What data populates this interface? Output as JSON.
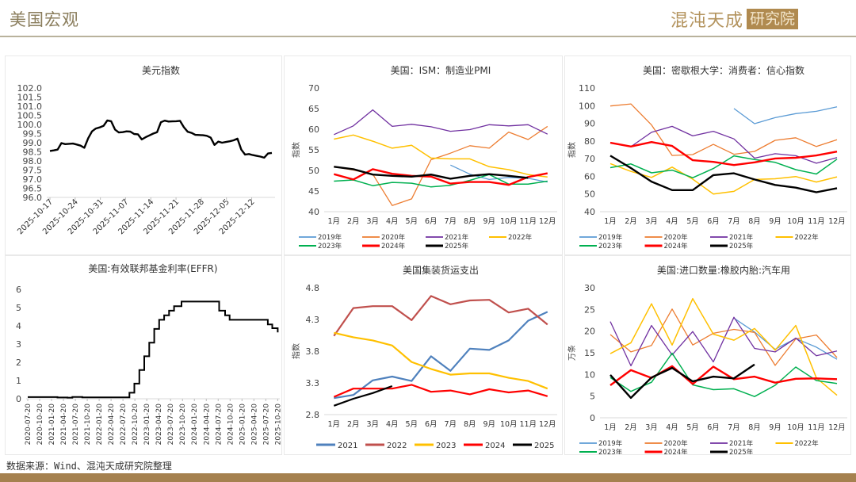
{
  "header": {
    "title": "美国宏观",
    "logo_main": "混沌天成",
    "logo_box": "研究院"
  },
  "footer": {
    "source": "数据来源：Wind、混沌天成研究院整理"
  },
  "colors": {
    "brand": "#a5814f",
    "rule": "#b9b29c"
  },
  "chart_data": [
    {
      "id": "dxy",
      "type": "line",
      "title": "美元指数",
      "xlabel": "",
      "ylabel": "",
      "ylim": [
        96.0,
        102.0
      ],
      "yticks": [
        "96.0",
        "96.5",
        "97.0",
        "97.5",
        "98.0",
        "98.5",
        "99.0",
        "99.5",
        "100.0",
        "100.5",
        "101.0",
        "101.5",
        "102.0"
      ],
      "xticks": [
        "2025-10-17",
        "2025-10-24",
        "2025-10-31",
        "2025-11-07",
        "2025-11-14",
        "2025-11-21",
        "2025-11-28",
        "2025-12-05",
        "2025-12-12"
      ],
      "grid": false,
      "legend": "none",
      "series": [
        {
          "name": "美元指数",
          "color": "#000000",
          "values": [
            98.55,
            98.58,
            98.62,
            98.98,
            98.92,
            98.94,
            98.95,
            98.9,
            98.84,
            98.72,
            99.25,
            99.62,
            99.78,
            99.84,
            99.92,
            100.22,
            100.18,
            99.72,
            99.56,
            99.58,
            99.62,
            99.61,
            99.48,
            99.46,
            99.18,
            99.3,
            99.4,
            99.5,
            99.58,
            100.12,
            100.21,
            100.16,
            100.17,
            100.18,
            100.2,
            99.85,
            99.6,
            99.54,
            99.43,
            99.42,
            99.41,
            99.38,
            99.28,
            98.88,
            99.06,
            99.0,
            99.04,
            99.08,
            99.13,
            99.22,
            98.62,
            98.35,
            98.38,
            98.32,
            98.28,
            98.24,
            98.18,
            98.41,
            98.44
          ]
        }
      ]
    },
    {
      "id": "ism",
      "type": "line",
      "title": "美国：ISM：制造业PMI",
      "xlabel": "",
      "ylabel": "指数",
      "ylim": [
        40,
        70
      ],
      "yticks": [
        "40",
        "45",
        "50",
        "55",
        "60",
        "65",
        "70"
      ],
      "categories": [
        "1月",
        "2月",
        "3月",
        "4月",
        "5月",
        "6月",
        "7月",
        "8月",
        "9月",
        "10月",
        "11月",
        "12月"
      ],
      "grid": false,
      "legend": "bottom",
      "series": [
        {
          "name": "2019年",
          "color": "#5b9bd5",
          "width": 1.3,
          "values": [
            null,
            null,
            null,
            null,
            null,
            null,
            51.3,
            49.1,
            47.8,
            48.3,
            48.1,
            47.2
          ]
        },
        {
          "name": "2020年",
          "color": "#ed7d31",
          "width": 1.3,
          "values": [
            50.9,
            50.1,
            49.1,
            41.5,
            43.1,
            52.6,
            54.2,
            56.0,
            55.4,
            59.3,
            57.5,
            60.7
          ]
        },
        {
          "name": "2021年",
          "color": "#7030a0",
          "width": 1.3,
          "values": [
            58.7,
            60.8,
            64.7,
            60.7,
            61.2,
            60.6,
            59.5,
            59.9,
            61.1,
            60.8,
            61.1,
            58.8
          ]
        },
        {
          "name": "2022年",
          "color": "#ffc000",
          "width": 1.5,
          "values": [
            57.6,
            58.6,
            57.1,
            55.4,
            56.1,
            53.0,
            52.8,
            52.8,
            50.9,
            50.2,
            49.0,
            48.4
          ]
        },
        {
          "name": "2023年",
          "color": "#00b050",
          "width": 1.5,
          "values": [
            47.4,
            47.7,
            46.3,
            47.1,
            46.9,
            46.0,
            46.4,
            47.6,
            49.0,
            46.7,
            46.7,
            47.4
          ]
        },
        {
          "name": "2024年",
          "color": "#ff0000",
          "width": 2.4,
          "values": [
            49.1,
            47.8,
            50.3,
            49.2,
            48.7,
            48.5,
            46.8,
            47.2,
            47.2,
            46.5,
            48.4,
            49.3
          ]
        },
        {
          "name": "2025年",
          "color": "#000000",
          "width": 2.4,
          "values": [
            50.9,
            50.3,
            49.0,
            48.7,
            48.5,
            49.0,
            48.0,
            48.7,
            49.1,
            48.7,
            48.2,
            null
          ]
        }
      ]
    },
    {
      "id": "umich",
      "type": "line",
      "title": "美国：密歇根大学：消费者：信心指数",
      "xlabel": "",
      "ylabel": "指数",
      "ylim": [
        40,
        110
      ],
      "yticks": [
        "40",
        "50",
        "60",
        "70",
        "80",
        "90",
        "100",
        "110"
      ],
      "categories": [
        "1月",
        "2月",
        "3月",
        "4月",
        "5月",
        "6月",
        "7月",
        "8月",
        "9月",
        "10月",
        "11月",
        "12月"
      ],
      "grid": false,
      "legend": "bottom",
      "series": [
        {
          "name": "2019年",
          "color": "#5b9bd5",
          "width": 1.3,
          "values": [
            null,
            null,
            null,
            null,
            null,
            null,
            98.4,
            89.8,
            93.2,
            95.5,
            96.8,
            99.3
          ]
        },
        {
          "name": "2020年",
          "color": "#ed7d31",
          "width": 1.3,
          "values": [
            99.8,
            101.0,
            89.1,
            71.8,
            72.3,
            78.1,
            72.5,
            74.1,
            80.4,
            81.8,
            76.9,
            80.7
          ]
        },
        {
          "name": "2021年",
          "color": "#7030a0",
          "width": 1.3,
          "values": [
            79.0,
            76.8,
            84.9,
            88.3,
            82.9,
            85.5,
            81.2,
            70.3,
            72.8,
            71.7,
            67.4,
            70.6
          ]
        },
        {
          "name": "2022年",
          "color": "#ffc000",
          "width": 1.5,
          "values": [
            67.2,
            62.8,
            59.4,
            65.2,
            58.4,
            50.0,
            51.5,
            58.2,
            58.6,
            59.9,
            56.8,
            59.7
          ]
        },
        {
          "name": "2023年",
          "color": "#00b050",
          "width": 1.5,
          "values": [
            64.9,
            67.0,
            62.0,
            63.5,
            59.2,
            64.4,
            71.6,
            69.5,
            67.9,
            63.8,
            61.3,
            69.7
          ]
        },
        {
          "name": "2024年",
          "color": "#ff0000",
          "width": 2.4,
          "values": [
            79.0,
            76.9,
            79.4,
            77.2,
            69.1,
            68.2,
            66.4,
            67.9,
            70.1,
            70.5,
            71.8,
            74.0
          ]
        },
        {
          "name": "2025年",
          "color": "#000000",
          "width": 2.4,
          "values": [
            71.7,
            64.7,
            57.0,
            52.2,
            52.2,
            60.7,
            61.7,
            58.2,
            55.1,
            53.6,
            51.0,
            53.3
          ]
        }
      ]
    },
    {
      "id": "effr",
      "type": "line",
      "title": "美国:有效联邦基金利率(EFFR)",
      "xlabel": "",
      "ylabel": "",
      "ylim": [
        0,
        6
      ],
      "yticks": [
        "0",
        "1",
        "2",
        "3",
        "4",
        "5",
        "6"
      ],
      "xticks": [
        "2020-07-20",
        "2020-10-20",
        "2021-01-20",
        "2021-04-20",
        "2021-07-20",
        "2021-10-20",
        "2022-01-20",
        "2022-04-20",
        "2022-07-20",
        "2022-10-20",
        "2023-01-20",
        "2023-04-20",
        "2023-07-20",
        "2023-10-20",
        "2024-01-20",
        "2024-04-20",
        "2024-07-20",
        "2024-10-20",
        "2025-01-20",
        "2025-04-20",
        "2025-07-20",
        "2025-10-20"
      ],
      "grid": false,
      "legend": "none",
      "series": [
        {
          "name": "EFFR",
          "color": "#000000",
          "step": true,
          "points": [
            [
              0,
              0.09
            ],
            [
              4,
              0.09
            ],
            [
              6,
              0.07
            ],
            [
              8,
              0.06
            ],
            [
              9,
              0.1
            ],
            [
              11,
              0.08
            ],
            [
              20,
              0.08
            ],
            [
              20.5,
              0.33
            ],
            [
              21.5,
              0.83
            ],
            [
              22.5,
              1.58
            ],
            [
              23.5,
              2.33
            ],
            [
              24.5,
              3.08
            ],
            [
              25.5,
              3.83
            ],
            [
              26.5,
              4.33
            ],
            [
              27.5,
              4.58
            ],
            [
              28.5,
              4.83
            ],
            [
              29.5,
              5.08
            ],
            [
              31,
              5.33
            ],
            [
              38.5,
              5.33
            ],
            [
              38.6,
              4.83
            ],
            [
              39.8,
              4.58
            ],
            [
              40.7,
              4.33
            ],
            [
              48.3,
              4.33
            ],
            [
              48.4,
              4.08
            ],
            [
              49.3,
              3.87
            ],
            [
              50.4,
              3.64
            ]
          ]
        }
      ]
    },
    {
      "id": "container",
      "type": "line",
      "title": "美国集装货运支出",
      "xlabel": "",
      "ylabel": "指数",
      "ylim": [
        2.8,
        4.8
      ],
      "yticks": [
        "2.8",
        "3.3",
        "3.8",
        "4.3",
        "4.8"
      ],
      "categories": [
        "1月",
        "2月",
        "3月",
        "4月",
        "5月",
        "6月",
        "7月",
        "8月",
        "9月",
        "10月",
        "11月",
        "12月"
      ],
      "grid": false,
      "legend": "bottom",
      "series": [
        {
          "name": "2021",
          "color": "#4f81bd",
          "width": 2.2,
          "values": [
            3.06,
            3.11,
            3.34,
            3.4,
            3.33,
            3.72,
            3.49,
            3.84,
            3.82,
            3.97,
            4.28,
            4.42
          ]
        },
        {
          "name": "2022",
          "color": "#c0504d",
          "width": 2.2,
          "values": [
            4.04,
            4.48,
            4.51,
            4.51,
            4.29,
            4.67,
            4.54,
            4.6,
            4.61,
            4.41,
            4.47,
            4.22
          ]
        },
        {
          "name": "2023",
          "color": "#ffc000",
          "width": 2.2,
          "values": [
            4.09,
            4.02,
            3.97,
            3.89,
            3.63,
            3.52,
            3.43,
            3.45,
            3.45,
            3.38,
            3.33,
            3.21
          ]
        },
        {
          "name": "2024",
          "color": "#ff0000",
          "width": 2.2,
          "values": [
            3.08,
            3.21,
            3.21,
            3.21,
            3.27,
            3.16,
            3.18,
            3.12,
            3.2,
            3.15,
            3.18,
            3.09
          ]
        },
        {
          "name": "2025",
          "color": "#000000",
          "width": 2.2,
          "values": [
            2.94,
            3.05,
            3.14,
            3.25,
            null,
            null,
            null,
            null,
            null,
            null,
            null,
            null
          ]
        }
      ]
    },
    {
      "id": "tires",
      "type": "line",
      "title": "美国:进口数量:橡胶内胎:汽车用",
      "xlabel": "",
      "ylabel": "万条",
      "ylim": [
        0,
        30
      ],
      "yticks": [
        "0",
        "5",
        "10",
        "15",
        "20",
        "25",
        "30"
      ],
      "categories": [
        "1月",
        "2月",
        "3月",
        "4月",
        "5月",
        "6月",
        "7月",
        "8月",
        "9月",
        "10月",
        "11月",
        "12月"
      ],
      "grid": false,
      "legend": "bottom",
      "series": [
        {
          "name": "2019年",
          "color": "#5b9bd5",
          "width": 1.3,
          "values": [
            null,
            null,
            null,
            null,
            null,
            null,
            23.0,
            19.8,
            15.8,
            18.3,
            16.3,
            13.5
          ]
        },
        {
          "name": "2020年",
          "color": "#ed7d31",
          "width": 1.3,
          "values": [
            19.2,
            15.2,
            16.7,
            25.1,
            16.8,
            19.5,
            20.4,
            19.7,
            12.1,
            18.2,
            19.1,
            13.9
          ]
        },
        {
          "name": "2021年",
          "color": "#7030a0",
          "width": 1.3,
          "values": [
            22.2,
            12.0,
            21.3,
            14.5,
            19.9,
            12.9,
            23.2,
            16.0,
            15.2,
            18.4,
            14.3,
            15.4
          ]
        },
        {
          "name": "2022年",
          "color": "#ffc000",
          "width": 1.5,
          "values": [
            14.8,
            17.3,
            26.3,
            16.8,
            27.5,
            19.3,
            17.9,
            20.6,
            15.6,
            21.3,
            9.2,
            5.2
          ]
        },
        {
          "name": "2023年",
          "color": "#00b050",
          "width": 1.5,
          "values": [
            9.3,
            6.1,
            8.2,
            14.9,
            7.6,
            6.5,
            6.7,
            4.9,
            7.5,
            11.7,
            8.6,
            7.9
          ]
        },
        {
          "name": "2024年",
          "color": "#ff0000",
          "width": 2.4,
          "values": [
            7.5,
            11.0,
            9.2,
            11.9,
            7.8,
            11.8,
            8.9,
            9.5,
            8.1,
            9.0,
            9.1,
            8.9
          ]
        },
        {
          "name": "2025年",
          "color": "#000000",
          "width": 2.4,
          "values": [
            9.9,
            4.6,
            9.3,
            11.5,
            8.4,
            9.5,
            9.1,
            12.3,
            null,
            null,
            null,
            null
          ]
        }
      ]
    }
  ]
}
